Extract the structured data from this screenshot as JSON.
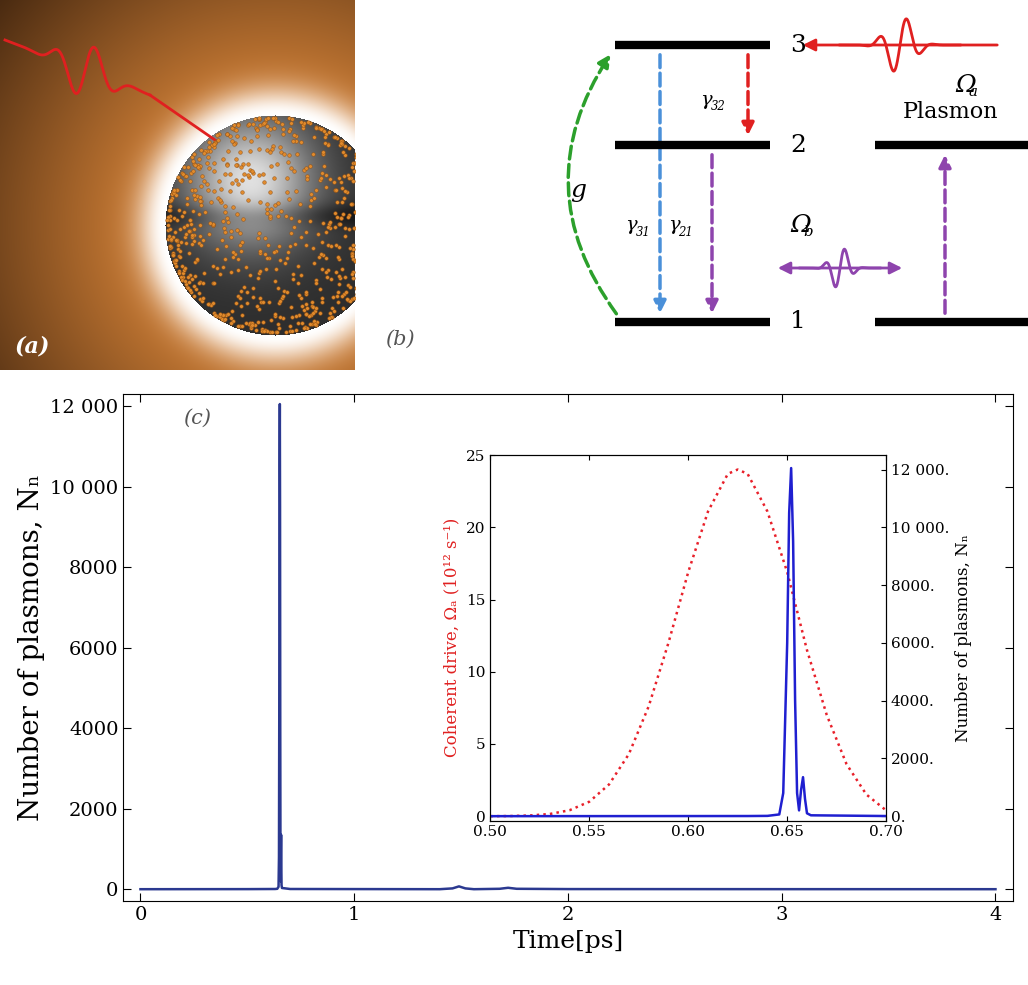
{
  "panel_a": {
    "label": "(a)"
  },
  "panel_b": {
    "label": "(b)",
    "level_labels": [
      "1",
      "2",
      "3"
    ],
    "plasmon_label": "Plasmon",
    "coupling": "g",
    "decays": [
      {
        "symbol": "γ",
        "subscript": "32"
      },
      {
        "symbol": "γ",
        "subscript": "31"
      },
      {
        "symbol": "γ",
        "subscript": "21"
      }
    ],
    "drives": [
      {
        "symbol": "Ω",
        "subscript": "a"
      },
      {
        "symbol": "Ω",
        "subscript": "b"
      }
    ]
  },
  "chart_data": [
    {
      "type": "line",
      "title": "(c)",
      "xlabel": "Time[ps]",
      "ylabel": "Number of plasmons, Nₙ",
      "x": [
        0,
        0.5,
        0.63,
        0.64,
        0.646,
        0.648,
        0.65,
        0.651,
        0.652,
        0.653,
        0.654,
        0.655,
        0.656,
        0.657,
        0.658,
        0.659,
        0.66,
        0.662,
        0.7,
        1.4,
        1.46,
        1.49,
        1.52,
        1.56,
        1.68,
        1.72,
        1.76,
        2.0,
        2.5,
        3.0,
        4.0
      ],
      "values": [
        0,
        2,
        5,
        10,
        60,
        800,
        6000,
        10500,
        12050,
        9500,
        4000,
        800,
        200,
        900,
        1350,
        600,
        100,
        30,
        5,
        0,
        20,
        70,
        20,
        0,
        10,
        35,
        10,
        3,
        2,
        1,
        0
      ],
      "color": "#2b3990",
      "xlim": [
        -0.08,
        4.08
      ],
      "ylim": [
        -300,
        12300
      ],
      "xticks": [
        0,
        1,
        2,
        3,
        4
      ],
      "yticks": [
        0,
        2000,
        4000,
        6000,
        8000,
        {
          "value": 10000,
          "label": "10 000"
        },
        {
          "value": 12000,
          "label": "12 000"
        }
      ]
    },
    {
      "type": "line",
      "ylabel": "Coherent drive, Ωₐ (10¹² s⁻¹)",
      "y2label": "Number of plasmons, Nₙ",
      "xlim": [
        0.5,
        0.7
      ],
      "xticks": [
        {
          "value": 0.5,
          "label": "0.50"
        },
        0.55,
        {
          "value": 0.6,
          "label": "0.60"
        },
        0.65,
        {
          "value": 0.7,
          "label": "0.70"
        }
      ],
      "ylim": [
        -0.3,
        25
      ],
      "yticks": [
        0,
        5,
        10,
        15,
        20,
        25
      ],
      "y2lim": [
        -150,
        12500
      ],
      "y2ticks": [
        {
          "value": 0,
          "label": "0."
        },
        {
          "value": 2000,
          "label": "2000."
        },
        {
          "value": 4000,
          "label": "4000."
        },
        {
          "value": 6000,
          "label": "6000."
        },
        {
          "value": 8000,
          "label": "8000."
        },
        {
          "value": 10000,
          "label": "10 000."
        },
        {
          "value": 12000,
          "label": "12 000."
        }
      ],
      "series": [
        {
          "color": "#e8202a",
          "line_style": "dotted",
          "x": [
            0.5,
            0.51,
            0.52,
            0.53,
            0.54,
            0.55,
            0.56,
            0.57,
            0.58,
            0.59,
            0.6,
            0.61,
            0.62,
            0.625,
            0.63,
            0.64,
            0.65,
            0.66,
            0.67,
            0.68,
            0.69,
            0.7
          ],
          "values": [
            0.0,
            0.01,
            0.05,
            0.15,
            0.41,
            1.0,
            2.2,
            4.3,
            7.6,
            12.0,
            16.9,
            21.1,
            23.7,
            24.0,
            23.7,
            21.1,
            16.9,
            11.5,
            7.0,
            3.6,
            1.5,
            0.4
          ]
        },
        {
          "color": "#1f1fd0",
          "line_style": "solid",
          "axis": "y2",
          "x": [
            0.5,
            0.63,
            0.64,
            0.646,
            0.648,
            0.65,
            0.651,
            0.652,
            0.653,
            0.654,
            0.655,
            0.656,
            0.657,
            0.658,
            0.659,
            0.66,
            0.662,
            0.7
          ],
          "values": [
            0,
            5,
            10,
            60,
            800,
            6000,
            10500,
            12050,
            9500,
            4000,
            800,
            200,
            900,
            1350,
            600,
            100,
            30,
            5
          ]
        }
      ]
    }
  ]
}
